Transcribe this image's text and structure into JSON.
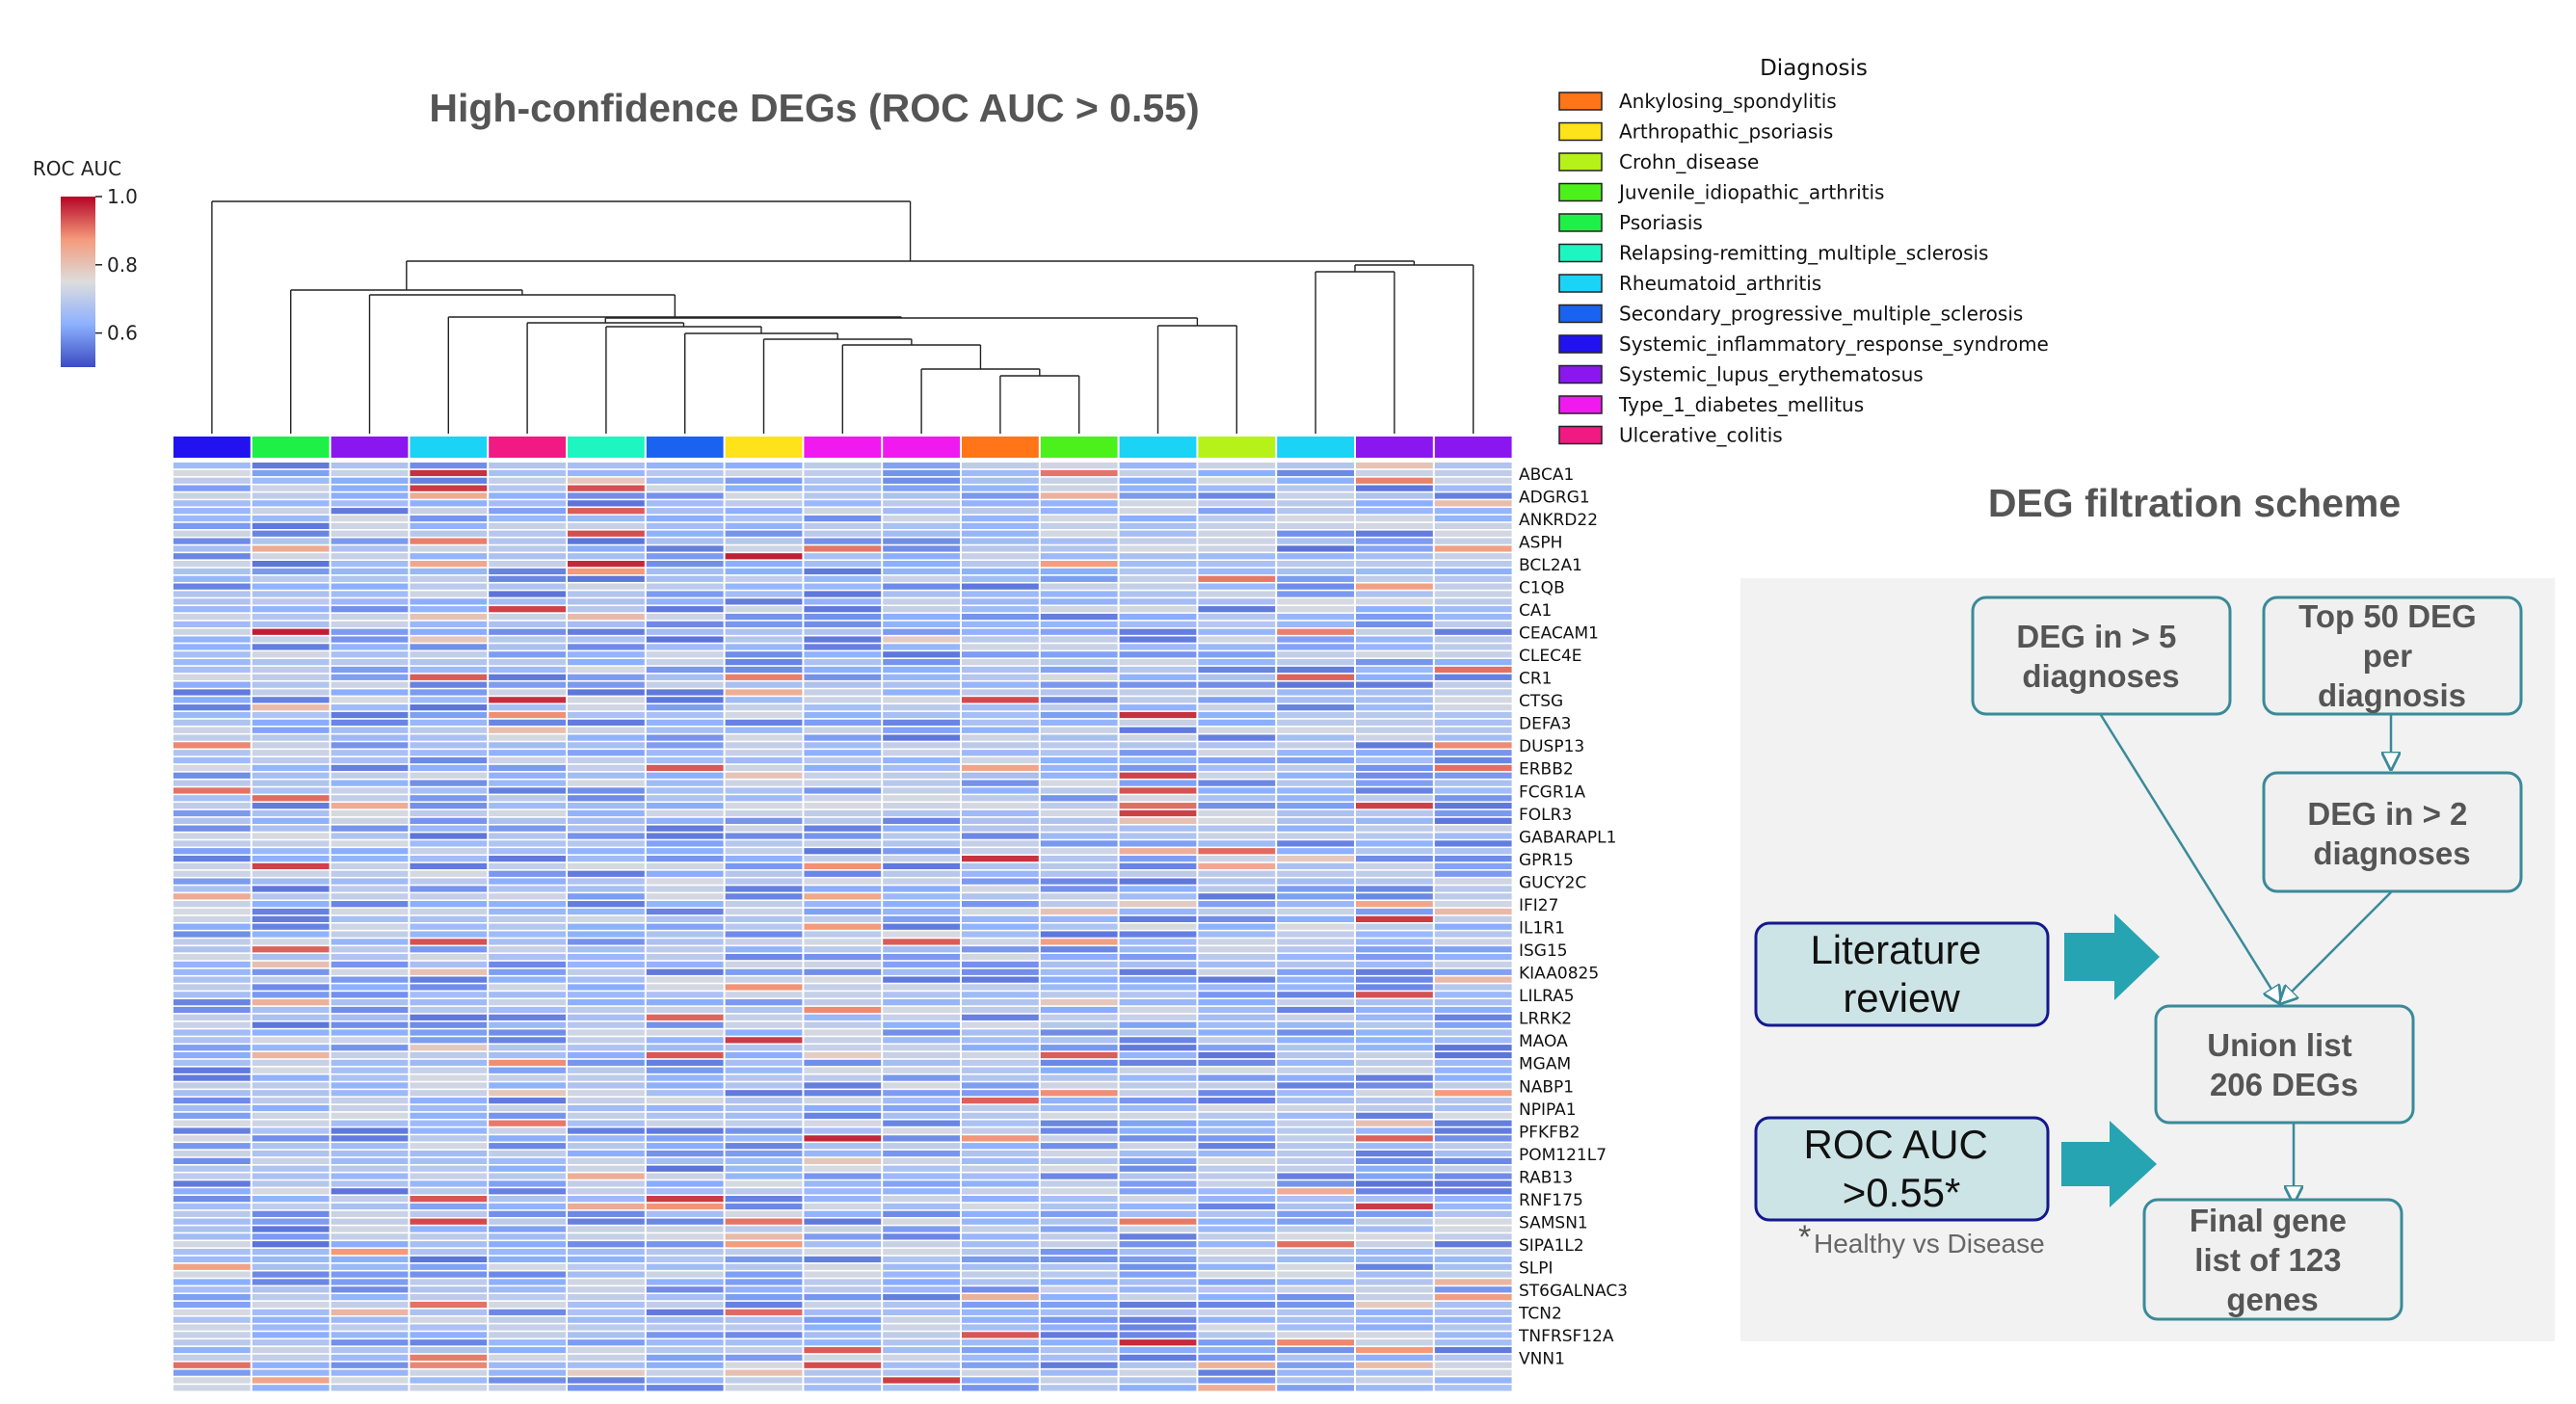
{
  "heatmap": {
    "title": "High-confidence DEGs (ROC AUC > 0.55)",
    "colorbar": {
      "label": "ROC AUC",
      "ticks": [
        "1.0",
        "0.8",
        "0.6"
      ],
      "range": [
        0.5,
        1.0
      ],
      "colormap": [
        "#3b4cc0",
        "#dddddd",
        "#b40426"
      ]
    },
    "genes": [
      "ABCA1",
      "ADGRG1",
      "ANKRD22",
      "ASPH",
      "BCL2A1",
      "C1QB",
      "CA1",
      "CEACAM1",
      "CLEC4E",
      "CR1",
      "CTSG",
      "DEFA3",
      "DUSP13",
      "ERBB2",
      "FCGR1A",
      "FOLR3",
      "GABARAPL1",
      "GPR15",
      "GUCY2C",
      "IFI27",
      "IL1R1",
      "ISG15",
      "KIAA0825",
      "LILRA5",
      "LRRK2",
      "MAOA",
      "MGAM",
      "NABP1",
      "NPIPA1",
      "PFKFB2",
      "POM121L7",
      "RAB13",
      "RNF175",
      "SAMSN1",
      "SIPA1L2",
      "SLPI",
      "ST6GALNAC3",
      "TCN2",
      "TNFRSF12A",
      "VNN1"
    ],
    "column_diagnoses": [
      "Systemic_inflammatory_response_syndrome",
      "Psoriasis",
      "Systemic_lupus_erythematosus",
      "Rheumatoid_arthritis",
      "Ulcerative_colitis",
      "Relapsing-remitting_multiple_sclerosis",
      "Secondary_progressive_multiple_sclerosis",
      "Arthropathic_psoriasis",
      "Type_1_diabetes_mellitus",
      "Type_1_diabetes_mellitus",
      "Ankylosing_spondylitis",
      "Juvenile_idiopathic_arthritis",
      "Rheumatoid_arthritis",
      "Crohn_disease",
      "Rheumatoid_arthritis",
      "Systemic_lupus_erythematosus",
      "Systemic_lupus_erythematosus"
    ]
  },
  "legend": {
    "title": "Diagnosis",
    "items": [
      {
        "label": "Ankylosing_spondylitis",
        "color": "#ff7518"
      },
      {
        "label": "Arthropathic_psoriasis",
        "color": "#ffe31a"
      },
      {
        "label": "Crohn_disease",
        "color": "#b6f21a"
      },
      {
        "label": "Juvenile_idiopathic_arthritis",
        "color": "#4cf01a"
      },
      {
        "label": "Psoriasis",
        "color": "#1ef048"
      },
      {
        "label": "Relapsing-remitting_multiple_sclerosis",
        "color": "#1ef6c2"
      },
      {
        "label": "Rheumatoid_arthritis",
        "color": "#1ad3f5"
      },
      {
        "label": "Secondary_progressive_multiple_sclerosis",
        "color": "#1a63f0"
      },
      {
        "label": "Systemic_inflammatory_response_syndrome",
        "color": "#2212f0"
      },
      {
        "label": "Systemic_lupus_erythematosus",
        "color": "#8a17f0"
      },
      {
        "label": "Type_1_diabetes_mellitus",
        "color": "#f01af0"
      },
      {
        "label": "Ulcerative_colitis",
        "color": "#f01a82"
      }
    ]
  },
  "scheme": {
    "title": "DEG filtration scheme",
    "box_deg5": [
      "DEG in > 5",
      "diagnoses"
    ],
    "box_top50": [
      "Top 50 DEG",
      "per",
      "diagnosis"
    ],
    "box_deg2": [
      "DEG in > 2",
      "diagnoses"
    ],
    "box_union": [
      "Union list",
      "206 DEGs"
    ],
    "box_final": [
      "Final gene",
      "list of 123",
      "genes"
    ],
    "side_literature": [
      "Literature",
      "review"
    ],
    "side_roc": [
      "ROC AUC",
      ">0.55*"
    ],
    "note_star": "*",
    "note": "Healthy vs Disease"
  },
  "chart_data": {
    "type": "heatmap",
    "title": "High-confidence DEGs (ROC AUC > 0.55)",
    "colorbar_label": "ROC AUC",
    "value_range": [
      0.5,
      1.0
    ],
    "colorbar_ticks": [
      1.0,
      0.8,
      0.6
    ],
    "n_columns": 17,
    "n_rows": 123,
    "rows_labeled_every": 3,
    "column_annotation": "Diagnosis",
    "cell_values_note_visible": "predominantly light blue (≈0.55–0.75) with scattered red cells (≈0.8–1.0)"
  }
}
